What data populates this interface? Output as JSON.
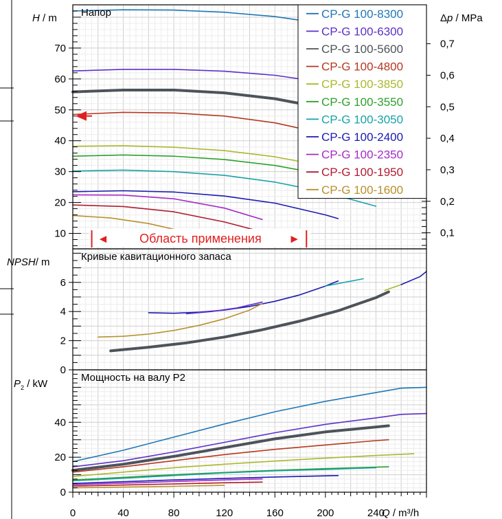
{
  "chart_data": [
    {
      "type": "line",
      "title": "Напор",
      "ylabel_var": "H",
      "ylabel_unit": " / m",
      "y2label_prefix": "Δ",
      "y2label_var": "p",
      "y2label_unit": " / MPa",
      "xlim": [
        0,
        280
      ],
      "ylim": [
        5,
        84
      ],
      "yticks": [
        10,
        20,
        30,
        40,
        50,
        60,
        70
      ],
      "y2ticks": [
        {
          "label": "0,1",
          "value": 10.2
        },
        {
          "label": "0,2",
          "value": 20.4
        },
        {
          "label": "0,3",
          "value": 30.6
        },
        {
          "label": "0,4",
          "value": 40.8
        },
        {
          "label": "0,5",
          "value": 51.0
        },
        {
          "label": "0,6",
          "value": 61.2
        },
        {
          "label": "0,7",
          "value": 71.4
        }
      ],
      "grid": true,
      "legend_position": "top-right",
      "annotation": {
        "text": "Область применения",
        "left_arrow": "◄",
        "right_arrow": "►",
        "x_from": 15,
        "x_to": 185
      },
      "operating_point": {
        "x": 0,
        "y": 48
      },
      "series": [
        {
          "name": "CP-G 100-8300",
          "color": "#1f77b4",
          "x": [
            0,
            40,
            80,
            120,
            160,
            200,
            240,
            280
          ],
          "y": [
            82,
            82.4,
            82.3,
            81.6,
            80.2,
            77.8,
            73.8,
            67.5
          ]
        },
        {
          "name": "CP-G 100-6300",
          "color": "#5b2fc9",
          "x": [
            0,
            40,
            80,
            120,
            160,
            200,
            240,
            280
          ],
          "y": [
            62.6,
            63.1,
            63.1,
            62.5,
            61.2,
            58.8,
            55.0,
            50.0
          ]
        },
        {
          "name": "CP-G 100-5600",
          "color": "#4d535a",
          "bold": true,
          "x": [
            0,
            40,
            80,
            120,
            160,
            200,
            240,
            250
          ],
          "y": [
            55.8,
            56.4,
            56.4,
            55.5,
            53.6,
            50.5,
            45.5,
            44.0
          ]
        },
        {
          "name": "CP-G 100-4800",
          "color": "#b5371f",
          "x": [
            0,
            40,
            80,
            120,
            160,
            200,
            240
          ],
          "y": [
            48.5,
            49.2,
            49.0,
            48.0,
            45.8,
            42.2,
            37.0
          ]
        },
        {
          "name": "CP-G 100-3850",
          "color": "#aab82b",
          "x": [
            0,
            40,
            80,
            120,
            160,
            200,
            240,
            260
          ],
          "y": [
            38.2,
            38.4,
            37.9,
            36.8,
            34.8,
            31.7,
            27.5,
            25.0
          ]
        },
        {
          "name": "CP-G 100-3550",
          "color": "#2ca02c",
          "x": [
            0,
            40,
            80,
            120,
            160,
            200,
            240,
            250
          ],
          "y": [
            35.0,
            35.4,
            35.0,
            33.9,
            32.0,
            29.0,
            24.8,
            23.5
          ]
        },
        {
          "name": "CP-G 100-3050",
          "color": "#17a2a8",
          "x": [
            0,
            40,
            80,
            120,
            160,
            200,
            240
          ],
          "y": [
            30.2,
            30.5,
            30.0,
            28.8,
            26.6,
            23.3,
            18.8
          ]
        },
        {
          "name": "CP-G 100-2400",
          "color": "#1a1ab0",
          "x": [
            0,
            40,
            80,
            120,
            160,
            200,
            210
          ],
          "y": [
            23.5,
            23.8,
            23.4,
            22.1,
            19.8,
            16.0,
            14.8
          ]
        },
        {
          "name": "CP-G 100-2350",
          "color": "#a52ac8",
          "x": [
            0,
            40,
            80,
            120,
            150
          ],
          "y": [
            22.5,
            22.4,
            21.2,
            18.2,
            14.5
          ]
        },
        {
          "name": "CP-G 100-1950",
          "color": "#b01b30",
          "x": [
            0,
            40,
            80,
            120,
            150
          ],
          "y": [
            19.2,
            18.7,
            17.0,
            13.7,
            10.5
          ]
        },
        {
          "name": "CP-G 100-1600",
          "color": "#b8902b",
          "x": [
            0,
            30,
            60,
            90,
            120
          ],
          "y": [
            15.8,
            15.0,
            13.2,
            10.4,
            6.5
          ]
        }
      ]
    },
    {
      "type": "line",
      "title": "Кривые кавитационного запаса",
      "ylabel": "NPSH",
      "ylabel_unit": "/ m",
      "xlim": [
        0,
        280
      ],
      "ylim": [
        0,
        8.3
      ],
      "yticks": [
        0,
        2,
        4,
        6
      ],
      "grid": true,
      "series": [
        {
          "color": "#1a1ab0",
          "x": [
            60,
            80,
            100,
            120,
            140,
            160,
            180,
            200,
            210
          ],
          "y": [
            3.92,
            3.88,
            3.95,
            4.1,
            4.35,
            4.7,
            5.15,
            5.75,
            6.1
          ]
        },
        {
          "color": "#17a2a8",
          "x": [
            200,
            230
          ],
          "y": [
            5.75,
            6.25
          ]
        },
        {
          "color": "#5b2fc9",
          "x": [
            90,
            110,
            130,
            150
          ],
          "y": [
            3.85,
            4.0,
            4.25,
            4.65
          ]
        },
        {
          "color": "#b8902b",
          "x": [
            20,
            40,
            60,
            80,
            100,
            120,
            140,
            150
          ],
          "y": [
            2.25,
            2.3,
            2.45,
            2.7,
            3.05,
            3.5,
            4.1,
            4.55
          ]
        },
        {
          "color": "#4d535a",
          "bold": true,
          "x": [
            30,
            60,
            90,
            120,
            150,
            180,
            210,
            240,
            250
          ],
          "y": [
            1.3,
            1.55,
            1.85,
            2.25,
            2.75,
            3.35,
            4.05,
            4.95,
            5.35
          ]
        },
        {
          "color": "#aab82b",
          "x": [
            247,
            260
          ],
          "y": [
            5.45,
            5.85
          ]
        },
        {
          "color": "#1a1ab0",
          "x": [
            260,
            275,
            280
          ],
          "y": [
            5.85,
            6.4,
            6.75
          ]
        }
      ]
    },
    {
      "type": "line",
      "title": "Мощность на валу P2",
      "ylabel_var": "P",
      "ylabel_sub": "2",
      "ylabel_unit": " / kW",
      "xlabel_var": "Q",
      "xlabel_unit": " / m³/h",
      "xlim": [
        0,
        280
      ],
      "ylim": [
        0,
        70
      ],
      "yticks": [
        0,
        20,
        40
      ],
      "xticks": [
        0,
        40,
        80,
        120,
        160,
        200,
        240
      ],
      "grid": true,
      "series": [
        {
          "color": "#1f77b4",
          "x": [
            0,
            40,
            80,
            120,
            160,
            200,
            240,
            260,
            280
          ],
          "y": [
            17.5,
            24.0,
            31.5,
            39.0,
            46.0,
            52.0,
            57.0,
            59.5,
            60.0
          ]
        },
        {
          "color": "#5b2fc9",
          "x": [
            0,
            40,
            80,
            120,
            160,
            200,
            240,
            260,
            280
          ],
          "y": [
            14.5,
            18.0,
            23.0,
            28.5,
            34.0,
            38.8,
            42.5,
            44.5,
            45.0
          ]
        },
        {
          "color": "#4d535a",
          "bold": true,
          "x": [
            0,
            40,
            80,
            120,
            160,
            200,
            250
          ],
          "y": [
            12.5,
            16.0,
            20.5,
            25.5,
            30.5,
            34.5,
            38.0
          ]
        },
        {
          "color": "#b5371f",
          "x": [
            0,
            40,
            80,
            120,
            160,
            200,
            240,
            250
          ],
          "y": [
            11.5,
            14.5,
            18.0,
            21.5,
            24.5,
            27.0,
            29.5,
            30.0
          ]
        },
        {
          "color": "#aab82b",
          "x": [
            0,
            40,
            80,
            120,
            160,
            200,
            240,
            270
          ],
          "y": [
            9.0,
            11.5,
            14.0,
            16.0,
            17.8,
            19.5,
            21.0,
            22.0
          ]
        },
        {
          "color": "#2ca02c",
          "x": [
            0,
            40,
            80,
            120,
            160,
            200,
            250
          ],
          "y": [
            7.0,
            8.5,
            10.0,
            11.3,
            12.5,
            13.5,
            14.5
          ]
        },
        {
          "color": "#17a2a8",
          "x": [
            0,
            40,
            80,
            120,
            160,
            200,
            240
          ],
          "y": [
            6.5,
            8.0,
            9.5,
            11.0,
            12.2,
            13.0,
            14.0
          ]
        },
        {
          "color": "#1a1ab0",
          "x": [
            0,
            40,
            80,
            120,
            160,
            210
          ],
          "y": [
            5.0,
            6.0,
            7.0,
            7.9,
            8.7,
            9.5
          ]
        },
        {
          "color": "#a52ac8",
          "x": [
            0,
            40,
            80,
            120,
            150
          ],
          "y": [
            4.3,
            5.2,
            6.1,
            7.0,
            7.6
          ]
        },
        {
          "color": "#b01b30",
          "x": [
            0,
            40,
            80,
            120,
            150
          ],
          "y": [
            3.5,
            4.1,
            4.7,
            5.4,
            5.8
          ]
        },
        {
          "color": "#b8902b",
          "x": [
            0,
            40,
            80,
            120
          ],
          "y": [
            2.5,
            2.9,
            3.4,
            3.9
          ]
        }
      ]
    }
  ]
}
